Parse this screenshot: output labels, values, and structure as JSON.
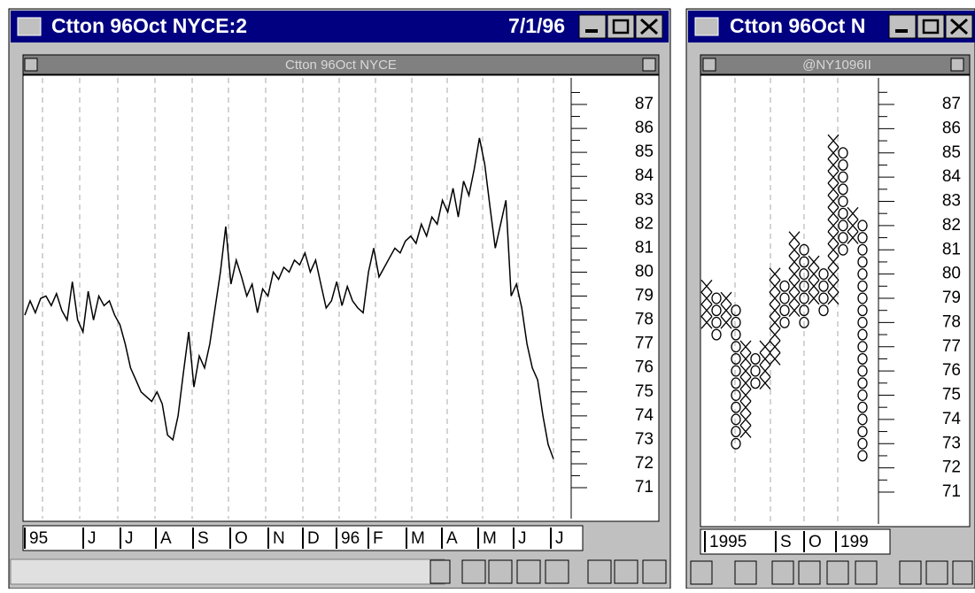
{
  "left_window": {
    "title": "Ctton 96Oct NYCE:2",
    "date": "7/1/96",
    "chart_title": "Ctton 96Oct NYCE",
    "yticks": [
      71,
      72,
      73,
      74,
      75,
      76,
      77,
      78,
      79,
      80,
      81,
      82,
      83,
      84,
      85,
      86,
      87
    ],
    "x_labels": [
      "95",
      "J",
      "J",
      "A",
      "S",
      "O",
      "N",
      "D",
      "96",
      "F",
      "M",
      "A",
      "M",
      "J",
      "J"
    ],
    "values": [
      78.2,
      78.8,
      78.3,
      78.9,
      79.0,
      78.6,
      79.1,
      78.4,
      78.0,
      79.6,
      78.0,
      77.5,
      79.2,
      78.0,
      79.0,
      78.6,
      78.8,
      78.2,
      77.8,
      77.0,
      76.0,
      75.5,
      75.0,
      74.8,
      74.6,
      75.0,
      74.5,
      73.2,
      73.0,
      74.0,
      75.8,
      77.5,
      75.2,
      76.5,
      76.0,
      77.0,
      78.5,
      80.0,
      81.9,
      79.5,
      80.5,
      79.8,
      79.0,
      79.5,
      78.3,
      79.3,
      79.0,
      80.0,
      79.7,
      80.2,
      80.0,
      80.5,
      80.3,
      80.8,
      80.0,
      80.5,
      79.5,
      78.5,
      78.8,
      79.6,
      78.6,
      79.4,
      78.8,
      78.5,
      78.3,
      80.0,
      81.0,
      79.8,
      80.2,
      80.6,
      81.0,
      80.8,
      81.3,
      81.5,
      81.2,
      82.0,
      81.5,
      82.3,
      82.0,
      83.0,
      82.5,
      83.5,
      82.3,
      83.8,
      83.2,
      84.3,
      85.6,
      84.5,
      82.7,
      81.0,
      82.0,
      83.0,
      79.0,
      79.5,
      78.5,
      77.0,
      76.0,
      75.5,
      74.0,
      72.8,
      72.2
    ]
  },
  "right_window": {
    "title": "Ctton 96Oct N",
    "chart_title": "@NY1096II",
    "yticks": [
      71,
      72,
      73,
      74,
      75,
      76,
      77,
      78,
      79,
      80,
      81,
      82,
      83,
      84,
      85,
      86,
      87
    ],
    "x_labels": [
      "1995",
      "S",
      "O",
      "199"
    ],
    "box_size": 0.5,
    "columns": [
      {
        "type": "X",
        "low": 78.0,
        "high": 79.5
      },
      {
        "type": "O",
        "low": 77.5,
        "high": 79.0
      },
      {
        "type": "X",
        "low": 78.0,
        "high": 79.0
      },
      {
        "type": "O",
        "low": 73.0,
        "high": 78.5
      },
      {
        "type": "X",
        "low": 73.5,
        "high": 77.0
      },
      {
        "type": "O",
        "low": 75.5,
        "high": 76.5
      },
      {
        "type": "X",
        "low": 75.5,
        "high": 77.0
      },
      {
        "type": "X",
        "low": 76.5,
        "high": 80.0
      },
      {
        "type": "O",
        "low": 78.0,
        "high": 79.5
      },
      {
        "type": "X",
        "low": 78.5,
        "high": 81.5
      },
      {
        "type": "O",
        "low": 78.0,
        "high": 81.0
      },
      {
        "type": "X",
        "low": 79.0,
        "high": 80.5
      },
      {
        "type": "O",
        "low": 78.5,
        "high": 80.0
      },
      {
        "type": "X",
        "low": 79.0,
        "high": 85.5
      },
      {
        "type": "O",
        "low": 81.0,
        "high": 85.0
      },
      {
        "type": "X",
        "low": 81.5,
        "high": 82.5
      },
      {
        "type": "O",
        "low": 72.5,
        "high": 82.0
      }
    ]
  }
}
